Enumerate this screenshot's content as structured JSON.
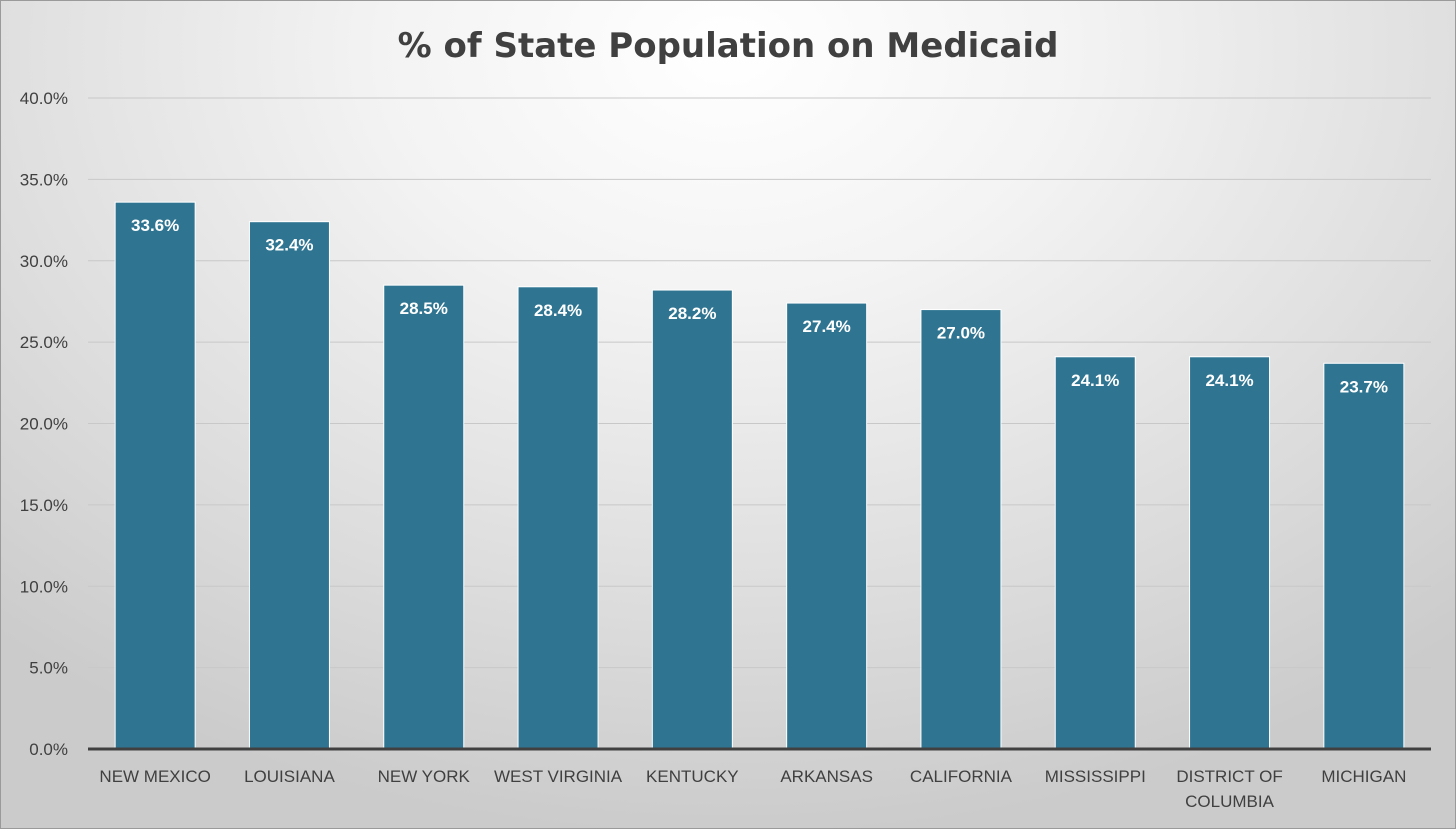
{
  "chart_data": {
    "type": "bar",
    "title": "% of State Population on Medicaid",
    "categories": [
      "NEW MEXICO",
      "LOUISIANA",
      "NEW YORK",
      "WEST VIRGINIA",
      "KENTUCKY",
      "ARKANSAS",
      "CALIFORNIA",
      "MISSISSIPPI",
      "DISTRICT OF COLUMBIA",
      "MICHIGAN"
    ],
    "values": [
      33.6,
      32.4,
      28.5,
      28.4,
      28.2,
      27.4,
      27.0,
      24.1,
      24.1,
      23.7
    ],
    "data_labels": [
      "33.6%",
      "32.4%",
      "28.5%",
      "28.4%",
      "28.2%",
      "27.4%",
      "27.0%",
      "24.1%",
      "24.1%",
      "23.7%"
    ],
    "xlabel": "",
    "ylabel": "",
    "ylim": [
      0,
      40
    ],
    "yticks": [
      "0.0%",
      "5.0%",
      "10.0%",
      "15.0%",
      "20.0%",
      "25.0%",
      "30.0%",
      "35.0%",
      "40.0%"
    ],
    "grid": true,
    "legend": "none",
    "bar_color": "#2f7592",
    "label_color": "#ffffff",
    "axis_color": "#404040"
  }
}
